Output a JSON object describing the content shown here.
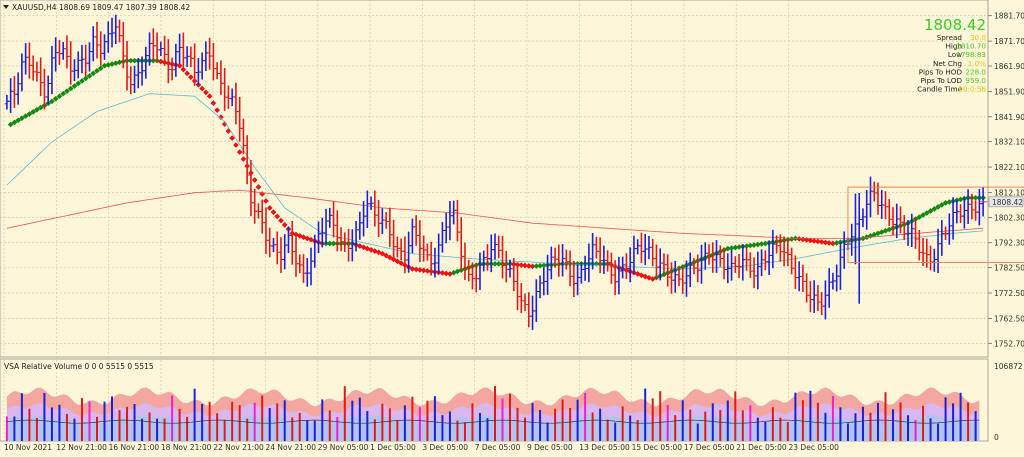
{
  "window": {
    "main_title": "XAUUSD,H4  1808.69 1809.47 1807.39 1808.42",
    "indicator_title": "VSA Relative Volume 0 0 0 5515 0 5515"
  },
  "info_panel": {
    "big_price": "1808.42",
    "rows": [
      {
        "label": "Spread",
        "value": "30.0",
        "color": "#f5c400"
      },
      {
        "label": "High",
        "value": "1810.70",
        "color": "#44cc22"
      },
      {
        "label": "Low",
        "value": "1798.83",
        "color": "#44cc22"
      },
      {
        "label": "Net Chg",
        "value": "1.0%",
        "color": "#f5c400"
      },
      {
        "label": "Pips To HOD",
        "value": "228.0",
        "color": "#44cc22"
      },
      {
        "label": "Pips To LOD",
        "value": "959.0",
        "color": "#44cc22"
      },
      {
        "label": "Candle Time",
        "value": "00:0:56",
        "color": "#f5c400"
      }
    ]
  },
  "colors": {
    "bull_bar": "#1c20d8",
    "bear_bar": "#e01a1a",
    "ma_up": "#118a11",
    "ma_down": "#ee1111",
    "ma_cyan": "#5bbcd6",
    "ma_slow": "#ee5050",
    "box": "#ee7a44",
    "grid": "#c8c8a8",
    "vol_band_top": "#f4a7a0",
    "vol_band_mid": "#d8b8ee",
    "vol_band_low": "#b4c4f0"
  },
  "chart_data": [
    {
      "type": "ohlc",
      "symbol": "XAUUSD",
      "timeframe": "H4",
      "ylim": [
        1747.7,
        1886.7
      ],
      "y_ticks": [
        "1881.70",
        "1871.70",
        "1861.90",
        "1851.90",
        "1841.90",
        "1832.10",
        "1822.10",
        "1812.10",
        "1802.30",
        "1792.30",
        "1782.50",
        "1772.50",
        "1762.50",
        "1752.70"
      ],
      "x_tick_labels": [
        "10 Nov 2021",
        "12 Nov 21:00",
        "16 Nov 21:00",
        "18 Nov 21:00",
        "22 Nov 21:00",
        "24 Nov 21:00",
        "29 Nov 05:00",
        "1 Dec 05:00",
        "3 Dec 05:00",
        "7 Dec 05:00",
        "9 Dec 05:00",
        "13 Dec 05:00",
        "15 Dec 05:00",
        "17 Dec 05:00",
        "21 Dec 05:00",
        "23 Dec 05:00"
      ],
      "current_price": "1808.42",
      "close_anchors": [
        1848,
        1850,
        1862,
        1864,
        1858,
        1852,
        1866,
        1868,
        1860,
        1863,
        1866,
        1872,
        1868,
        1871,
        1879,
        1864,
        1856,
        1860,
        1866,
        1870,
        1866,
        1862,
        1870,
        1866,
        1858,
        1862,
        1868,
        1858,
        1852,
        1846,
        1836,
        1810,
        1806,
        1798,
        1790,
        1786,
        1792,
        1786,
        1780,
        1788,
        1796,
        1800,
        1798,
        1790,
        1794,
        1798,
        1808,
        1802,
        1800,
        1798,
        1790,
        1788,
        1796,
        1790,
        1784,
        1788,
        1800,
        1806,
        1790,
        1776,
        1780,
        1786,
        1792,
        1788,
        1780,
        1776,
        1768,
        1766,
        1774,
        1780,
        1784,
        1786,
        1782,
        1778,
        1784,
        1788,
        1786,
        1782,
        1780,
        1784,
        1786,
        1790,
        1788,
        1786,
        1784,
        1780,
        1776,
        1778,
        1782,
        1786,
        1790,
        1786,
        1782,
        1780,
        1786,
        1784,
        1782,
        1786,
        1788,
        1790,
        1786,
        1782,
        1776,
        1770,
        1766,
        1772,
        1780,
        1790,
        1796,
        1798,
        1806,
        1812,
        1808,
        1804,
        1800,
        1796,
        1794,
        1790,
        1786,
        1790,
        1796,
        1800,
        1804,
        1806,
        1808,
        1808
      ],
      "moving_averages": [
        {
          "type": "line",
          "trend_colored": true,
          "points": [
            [
              0,
              1838
            ],
            [
              12,
              1848
            ],
            [
              20,
              1856
            ],
            [
              26,
              1862
            ],
            [
              32,
              1864
            ],
            [
              40,
              1864
            ],
            [
              46,
              1862
            ],
            [
              54,
              1850
            ],
            [
              62,
              1828
            ],
            [
              70,
              1806
            ],
            [
              76,
              1796
            ],
            [
              84,
              1792
            ],
            [
              92,
              1792
            ],
            [
              100,
              1788
            ],
            [
              108,
              1782
            ],
            [
              118,
              1780
            ],
            [
              126,
              1784
            ],
            [
              134,
              1784
            ],
            [
              140,
              1783
            ],
            [
              148,
              1784
            ],
            [
              160,
              1784
            ],
            [
              172,
              1778
            ],
            [
              182,
              1784
            ],
            [
              192,
              1790
            ],
            [
              202,
              1792
            ],
            [
              210,
              1794
            ],
            [
              220,
              1792
            ],
            [
              228,
              1794
            ],
            [
              240,
              1800
            ],
            [
              250,
              1808
            ],
            [
              256,
              1810
            ],
            [
              260,
              1810
            ]
          ]
        },
        {
          "type": "line",
          "color_key": "ma_cyan",
          "points": [
            [
              0,
              1815
            ],
            [
              12,
              1832
            ],
            [
              24,
              1844
            ],
            [
              38,
              1851
            ],
            [
              50,
              1850
            ],
            [
              58,
              1840
            ],
            [
              66,
              1822
            ],
            [
              74,
              1806
            ],
            [
              84,
              1796
            ],
            [
              96,
              1792
            ],
            [
              108,
              1788
            ],
            [
              124,
              1786
            ],
            [
              136,
              1785
            ],
            [
              148,
              1784
            ],
            [
              164,
              1783
            ],
            [
              180,
              1782
            ],
            [
              196,
              1783
            ],
            [
              210,
              1786
            ],
            [
              224,
              1790
            ],
            [
              240,
              1794
            ],
            [
              252,
              1796
            ],
            [
              260,
              1797
            ]
          ]
        },
        {
          "type": "line",
          "color_key": "ma_slow",
          "points": [
            [
              0,
              1798
            ],
            [
              16,
              1803
            ],
            [
              32,
              1808
            ],
            [
              50,
              1812
            ],
            [
              62,
              1813
            ],
            [
              80,
              1810
            ],
            [
              100,
              1806
            ],
            [
              120,
              1804
            ],
            [
              140,
              1800
            ],
            [
              160,
              1798
            ],
            [
              180,
              1796
            ],
            [
              196,
              1795
            ],
            [
              210,
              1794
            ],
            [
              226,
              1794
            ],
            [
              242,
              1796
            ],
            [
              260,
              1798
            ]
          ]
        }
      ],
      "box": {
        "x": [
          224,
          296
        ],
        "y": [
          1784.5,
          1814.2
        ]
      }
    },
    {
      "type": "bar",
      "title": "VSA Relative Volume",
      "ylim": [
        0,
        106872
      ],
      "y_ticks": [
        "106872",
        "0"
      ],
      "pattern": [
        42,
        55,
        38,
        61,
        70,
        52,
        47,
        66,
        35,
        58,
        80,
        45,
        62,
        50,
        73,
        39,
        56,
        68,
        44,
        59,
        77,
        48,
        64,
        53,
        36,
        71,
        57,
        42,
        66,
        83,
        49,
        55,
        60,
        38,
        72,
        51,
        46,
        69,
        58,
        41
      ]
    }
  ]
}
